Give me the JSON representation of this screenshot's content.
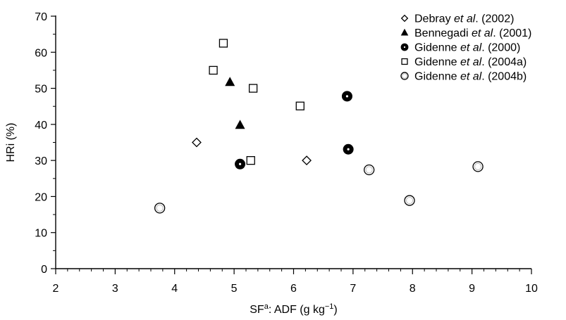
{
  "chart_data": {
    "type": "scatter",
    "xlabel": "SFa: ADF (g kg−1)",
    "xlabel_parts": {
      "pre": "SF",
      "sup": "a",
      "mid": ": ADF (g kg",
      "sup2": "−1",
      "post": ")"
    },
    "ylabel": "HRi (%)",
    "xlim": [
      2,
      10
    ],
    "ylim": [
      0,
      70
    ],
    "x_ticks": [
      2,
      3,
      4,
      5,
      6,
      7,
      8,
      9,
      10
    ],
    "y_ticks": [
      0,
      10,
      20,
      30,
      40,
      50,
      60,
      70
    ],
    "grid": false,
    "legend_position": "top-right",
    "series": [
      {
        "name": "Debray et al. (2002)",
        "name_parts": [
          "Debray ",
          "et al",
          ". (2002)"
        ],
        "marker": "diamond",
        "points": [
          [
            4.37,
            35
          ],
          [
            6.22,
            30
          ]
        ]
      },
      {
        "name": "Bennegadi et al. (2001)",
        "name_parts": [
          "Bennegadi ",
          "et al",
          ". (2001)"
        ],
        "marker": "triangle",
        "points": [
          [
            4.93,
            51.7
          ],
          [
            5.1,
            39.8
          ]
        ]
      },
      {
        "name": "Gidenne et al. (2000)",
        "name_parts": [
          "Gidenne ",
          "et al",
          ". (2000)"
        ],
        "marker": "filled-circle",
        "points": [
          [
            5.1,
            29
          ],
          [
            6.9,
            47.8
          ],
          [
            6.92,
            33.1
          ]
        ]
      },
      {
        "name": "Gidenne et al. (2004a)",
        "name_parts": [
          "Gidenne ",
          "et al",
          ". (2004a)"
        ],
        "marker": "square",
        "points": [
          [
            4.65,
            55
          ],
          [
            4.82,
            62.5
          ],
          [
            5.28,
            30
          ],
          [
            5.32,
            50
          ],
          [
            6.11,
            45.1
          ]
        ]
      },
      {
        "name": "Gidenne et al. (2004b)",
        "name_parts": [
          "Gidenne ",
          "et al",
          ". (2004b)"
        ],
        "marker": "open-circle",
        "points": [
          [
            3.75,
            16.8
          ],
          [
            7.27,
            27.4
          ],
          [
            7.95,
            18.9
          ],
          [
            9.1,
            28.3
          ]
        ]
      }
    ]
  }
}
